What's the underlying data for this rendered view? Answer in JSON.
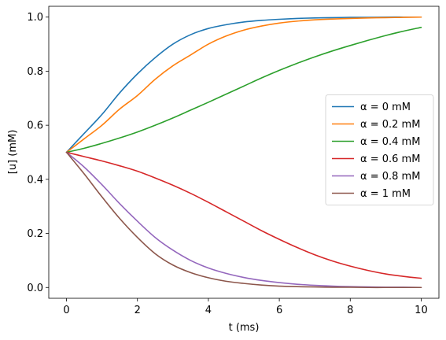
{
  "chart_data": {
    "type": "line",
    "title": "",
    "xlabel": "t (ms)",
    "ylabel": "[u] (mM)",
    "xlim": [
      -0.5,
      10.5
    ],
    "ylim": [
      -0.04,
      1.04
    ],
    "grid": false,
    "legend_position": "center-right",
    "x_ticks": [
      0,
      2,
      4,
      6,
      8,
      10
    ],
    "x_tick_labels": [
      "0",
      "2",
      "4",
      "6",
      "8",
      "10"
    ],
    "y_ticks": [
      0.0,
      0.2,
      0.4,
      0.6,
      0.8,
      1.0
    ],
    "y_tick_labels": [
      "0.0",
      "0.2",
      "0.4",
      "0.6",
      "0.8",
      "1.0"
    ],
    "x": [
      0,
      0.5,
      1,
      1.5,
      2,
      2.5,
      3,
      3.5,
      4,
      4.5,
      5,
      5.5,
      6,
      6.5,
      7,
      7.5,
      8,
      8.5,
      9,
      9.5,
      10
    ],
    "series": [
      {
        "name": "α = 0 mM",
        "color": "#1f77b4",
        "values": [
          0.5,
          0.57,
          0.64,
          0.72,
          0.79,
          0.85,
          0.9,
          0.935,
          0.958,
          0.972,
          0.982,
          0.988,
          0.992,
          0.995,
          0.997,
          0.998,
          0.999,
          0.999,
          1.0,
          1.0,
          1.0
        ]
      },
      {
        "name": "α = 0.2 mM",
        "color": "#ff7f0e",
        "values": [
          0.5,
          0.55,
          0.6,
          0.66,
          0.71,
          0.77,
          0.82,
          0.86,
          0.9,
          0.93,
          0.952,
          0.967,
          0.978,
          0.985,
          0.99,
          0.993,
          0.995,
          0.997,
          0.998,
          0.999,
          1.0
        ]
      },
      {
        "name": "α = 0.4 mM",
        "color": "#2ca02c",
        "values": [
          0.5,
          0.515,
          0.533,
          0.553,
          0.575,
          0.6,
          0.627,
          0.656,
          0.685,
          0.715,
          0.745,
          0.775,
          0.803,
          0.829,
          0.853,
          0.875,
          0.895,
          0.914,
          0.932,
          0.948,
          0.962
        ]
      },
      {
        "name": "α = 0.6 mM",
        "color": "#d62728",
        "values": [
          0.5,
          0.484,
          0.468,
          0.45,
          0.43,
          0.405,
          0.378,
          0.348,
          0.315,
          0.28,
          0.245,
          0.21,
          0.178,
          0.148,
          0.121,
          0.098,
          0.079,
          0.063,
          0.05,
          0.041,
          0.034
        ]
      },
      {
        "name": "α = 0.8 mM",
        "color": "#9467bd",
        "values": [
          0.5,
          0.445,
          0.38,
          0.31,
          0.245,
          0.185,
          0.138,
          0.1,
          0.072,
          0.052,
          0.037,
          0.026,
          0.018,
          0.012,
          0.008,
          0.005,
          0.003,
          0.002,
          0.001,
          0.001,
          0.0
        ]
      },
      {
        "name": "α = 1 mM",
        "color": "#8c564b",
        "values": [
          0.5,
          0.42,
          0.335,
          0.255,
          0.185,
          0.125,
          0.083,
          0.055,
          0.036,
          0.023,
          0.015,
          0.009,
          0.005,
          0.003,
          0.002,
          0.001,
          0.001,
          0.0,
          0.0,
          0.0,
          0.0
        ]
      }
    ]
  }
}
